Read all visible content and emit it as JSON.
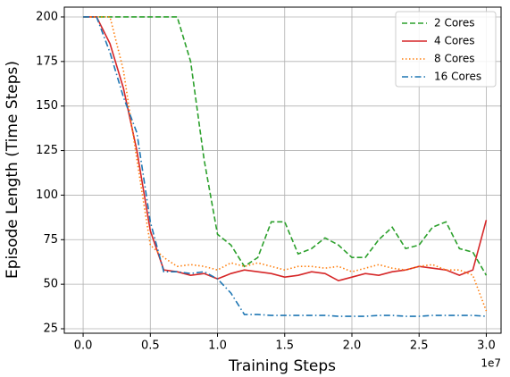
{
  "chart_data": {
    "type": "line",
    "xlabel": "Training Steps",
    "ylabel": "Episode Length (Time Steps)",
    "x_offset_label": "1e7",
    "x": [
      0.0,
      0.1,
      0.2,
      0.3,
      0.4,
      0.5,
      0.6,
      0.7,
      0.8,
      0.9,
      1.0,
      1.1,
      1.2,
      1.3,
      1.4,
      1.5,
      1.6,
      1.7,
      1.8,
      1.9,
      2.0,
      2.1,
      2.2,
      2.3,
      2.4,
      2.5,
      2.6,
      2.7,
      2.8,
      2.9,
      3.0
    ],
    "series": [
      {
        "name": "2 Cores",
        "color": "#2ca02c",
        "linestyle": "dashed",
        "values": [
          200,
          200,
          200,
          200,
          200,
          200,
          200,
          200,
          175,
          120,
          78,
          72,
          60,
          65,
          85,
          85,
          67,
          70,
          76,
          72,
          65,
          65,
          75,
          82,
          70,
          72,
          82,
          85,
          70,
          68,
          55
        ]
      },
      {
        "name": "4 Cores",
        "color": "#d62728",
        "linestyle": "solid",
        "values": [
          200,
          200,
          185,
          160,
          125,
          80,
          58,
          57,
          55,
          56,
          53,
          56,
          58,
          57,
          56,
          54,
          55,
          57,
          56,
          52,
          54,
          56,
          55,
          57,
          58,
          60,
          59,
          58,
          55,
          58,
          86
        ]
      },
      {
        "name": "8 Cores",
        "color": "#ff7f0e",
        "linestyle": "dotted",
        "values": [
          200,
          200,
          200,
          170,
          120,
          72,
          65,
          60,
          61,
          60,
          58,
          62,
          60,
          62,
          60,
          58,
          60,
          60,
          59,
          60,
          57,
          59,
          61,
          59,
          58,
          60,
          61,
          58,
          58,
          55,
          35
        ]
      },
      {
        "name": "16 Cores",
        "color": "#1f77b4",
        "linestyle": "dashdot",
        "values": [
          200,
          200,
          180,
          155,
          135,
          85,
          57,
          57,
          56,
          57,
          53,
          45,
          33,
          33,
          32.5,
          32.5,
          32.5,
          32.5,
          32.5,
          32,
          32,
          32,
          32.5,
          32.5,
          32,
          32,
          32.5,
          32.5,
          32.5,
          32.5,
          32
        ]
      }
    ],
    "xlim": [
      -0.14,
      3.11
    ],
    "ylim": [
      22.5,
      205.5
    ],
    "xticks": [
      {
        "value": 0,
        "label": "0.0"
      },
      0.5,
      {
        "value": 1,
        "label": "1.0"
      },
      1.5,
      {
        "value": 2,
        "label": "2.0"
      },
      2.5,
      {
        "value": 3,
        "label": "3.0"
      }
    ],
    "yticks": [
      25,
      50,
      75,
      100,
      125,
      150,
      175,
      200
    ],
    "grid": true,
    "legend": "upper right"
  }
}
